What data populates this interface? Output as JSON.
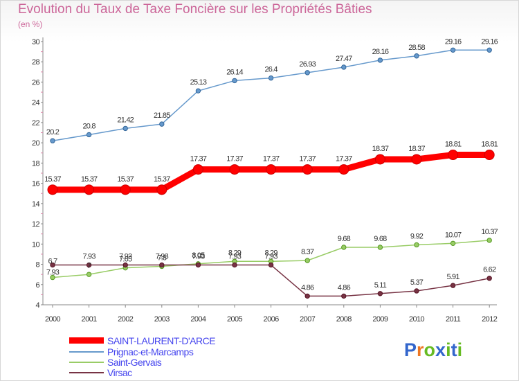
{
  "chart_data": {
    "type": "line",
    "title": "Evolution du Taux de Taxe Foncière sur les Propriétés Bâties",
    "subtitle": "(en %)",
    "x": [
      "2000",
      "2001",
      "2002",
      "2003",
      "2004",
      "2005",
      "2006",
      "2007",
      "2008",
      "2009",
      "2010",
      "2011",
      "2012"
    ],
    "ylim": [
      4,
      30
    ],
    "yticks": [
      "4",
      "6",
      "8",
      "10",
      "12",
      "14",
      "16",
      "18",
      "20",
      "22",
      "24",
      "26",
      "28",
      "30"
    ],
    "grid": false,
    "legend_position": "bottom-left",
    "series": [
      {
        "name": "SAINT-LAURENT-D'ARCE",
        "color": "#ff0000",
        "values": [
          15.37,
          15.37,
          15.37,
          15.37,
          17.37,
          17.37,
          17.37,
          17.37,
          17.37,
          18.37,
          18.37,
          18.81,
          18.81
        ],
        "labels": [
          "15.37",
          "15.37",
          "15.37",
          "15.37",
          "17.37",
          "17.37",
          "17.37",
          "17.37",
          "17.37",
          "18.37",
          "18.37",
          "18.81",
          "18.81"
        ]
      },
      {
        "name": "Prignac-et-Marcamps",
        "color": "#6699cc",
        "values": [
          20.2,
          20.8,
          21.42,
          21.85,
          25.13,
          26.14,
          26.4,
          26.93,
          27.47,
          28.16,
          28.58,
          29.16,
          29.16
        ],
        "labels": [
          "20.2",
          "20.8",
          "21.42",
          "21.85",
          "25.13",
          "26.14",
          "26.4",
          "26.93",
          "27.47",
          "28.16",
          "28.58",
          "29.16",
          "29.16"
        ]
      },
      {
        "name": "Saint-Gervais",
        "color": "#99cc66",
        "values": [
          6.7,
          7.0,
          7.65,
          7.8,
          8.05,
          8.29,
          8.29,
          8.37,
          9.68,
          9.68,
          9.92,
          10.07,
          10.37
        ],
        "labels": [
          "6.7",
          "7",
          "7.65",
          "7.8",
          "8.05",
          "8.29",
          "8.29",
          "8.37",
          "9.68",
          "9.68",
          "9.92",
          "10.07",
          "10.37"
        ]
      },
      {
        "name": "Virsac",
        "color": "#773344",
        "values": [
          7.93,
          7.93,
          7.93,
          7.93,
          7.93,
          7.93,
          7.93,
          4.86,
          4.86,
          5.11,
          5.37,
          5.91,
          6.62
        ],
        "labels": [
          "7.93",
          "7.93",
          "7.93",
          "7.93",
          "7.93",
          "7.93",
          "7.93",
          "4.86",
          "4.86",
          "5.11",
          "5.37",
          "5.91",
          "6.62"
        ]
      }
    ]
  },
  "logo": {
    "text": "Proxiti",
    "letter_colors": [
      "#3366cc",
      "#ee7722",
      "#66bb22",
      "#3366cc",
      "#66bb22",
      "#3366cc",
      "#66bb22"
    ]
  }
}
